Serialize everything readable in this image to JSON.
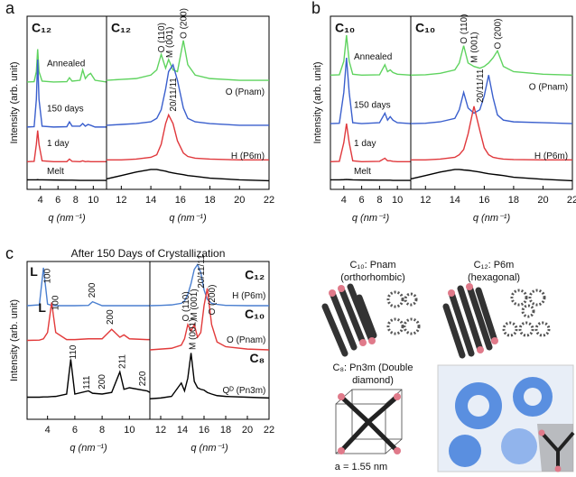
{
  "figure": {
    "panel_labels": [
      "a",
      "b",
      "c"
    ],
    "c_title": "After 150 Days of Crystallization",
    "structures": [
      "C₁₀: Pnam",
      "(orthorhombic)",
      "C₁₂: P6m",
      "(hexagonal)",
      "C₈: Pn3m (Double",
      "diamond)",
      "a = 1.55 nm"
    ]
  },
  "chart_data": [
    {
      "type": "line",
      "title": "C₁₂",
      "ylabel": "Intensity (arb. unit)",
      "xlabel": "q (nm⁻¹)",
      "xlim": [
        2.5,
        11.5
      ],
      "xticks": [
        4,
        6,
        8,
        10
      ],
      "ylim": [
        0,
        10
      ],
      "x": [
        2.5,
        3.3,
        3.55,
        3.7,
        3.85,
        4.2,
        5.5,
        7.0,
        7.3,
        7.6,
        8.5,
        8.8,
        9.1,
        9.4,
        9.7,
        10.2,
        11.5
      ],
      "series": [
        {
          "name": "Annealed",
          "color": "#5fd35f",
          "values": [
            6.2,
            6.22,
            6.8,
            8.1,
            6.8,
            6.25,
            6.2,
            6.22,
            6.45,
            6.25,
            6.3,
            6.9,
            6.4,
            6.6,
            6.7,
            6.3,
            6.2
          ]
        },
        {
          "name": "150 days",
          "color": "#3a5fcd",
          "values": [
            3.6,
            3.62,
            5.2,
            7.5,
            5.2,
            3.65,
            3.6,
            3.62,
            3.9,
            3.65,
            3.65,
            3.8,
            3.65,
            3.75,
            3.7,
            3.6,
            3.6
          ]
        },
        {
          "name": "1 day",
          "color": "#e0383c",
          "values": [
            1.6,
            1.62,
            2.6,
            3.4,
            2.6,
            1.65,
            1.6,
            1.6,
            1.75,
            1.62,
            1.6,
            1.65,
            1.6,
            1.62,
            1.6,
            1.6,
            1.6
          ]
        },
        {
          "name": "Melt",
          "color": "#000000",
          "values": [
            0.55,
            0.55,
            0.55,
            0.56,
            0.55,
            0.55,
            0.54,
            0.53,
            0.53,
            0.53,
            0.52,
            0.52,
            0.52,
            0.52,
            0.52,
            0.52,
            0.52
          ]
        }
      ],
      "annotations": []
    },
    {
      "type": "line",
      "title": "C₁₂",
      "xlabel": "q (nm⁻¹)",
      "xlim": [
        11,
        22
      ],
      "xticks": [
        12,
        14,
        16,
        18,
        20,
        22
      ],
      "ylim": [
        0,
        10
      ],
      "x": [
        11,
        12,
        13,
        14,
        14.4,
        14.7,
        15.0,
        15.2,
        15.5,
        15.8,
        16.2,
        16.5,
        17,
        18,
        20,
        22
      ],
      "series": [
        {
          "color": "#5fd35f",
          "values": [
            6.3,
            6.35,
            6.4,
            6.6,
            6.9,
            7.8,
            7.0,
            7.5,
            6.9,
            6.8,
            8.6,
            7.2,
            6.6,
            6.4,
            6.3,
            6.3
          ]
        },
        {
          "color": "#3a5fcd",
          "values": [
            3.7,
            3.75,
            3.8,
            3.9,
            4.1,
            4.6,
            5.8,
            6.8,
            7.2,
            6.3,
            4.7,
            4.1,
            3.9,
            3.8,
            3.7,
            3.7
          ]
        },
        {
          "color": "#e0383c",
          "values": [
            1.7,
            1.7,
            1.75,
            1.85,
            2.0,
            2.6,
            3.8,
            4.3,
            3.8,
            2.8,
            2.1,
            1.9,
            1.8,
            1.75,
            1.7,
            1.7
          ]
        },
        {
          "color": "#000000",
          "values": [
            0.6,
            0.8,
            1.0,
            1.15,
            1.15,
            1.1,
            1.05,
            1.0,
            0.95,
            0.9,
            0.85,
            0.8,
            0.75,
            0.65,
            0.55,
            0.5
          ]
        }
      ],
      "annotations": [
        "O (110)",
        "M (001)",
        "O (200)",
        "O (Pnam)",
        "H (P6m)",
        "20/11/11"
      ]
    },
    {
      "type": "line",
      "title": "C₁₀",
      "ylabel": "Intensity (arb. unit)",
      "xlabel": "q (nm⁻¹)",
      "xlim": [
        2.5,
        11.5
      ],
      "xticks": [
        4,
        6,
        8,
        10
      ],
      "ylim": [
        0,
        10
      ],
      "x": [
        2.5,
        3.5,
        4.0,
        4.3,
        4.6,
        5.0,
        6.0,
        8.0,
        8.6,
        8.9,
        9.2,
        9.5,
        10,
        11.5
      ],
      "series": [
        {
          "name": "Annealed",
          "color": "#5fd35f",
          "values": [
            6.6,
            6.62,
            7.4,
            8.9,
            7.4,
            6.65,
            6.6,
            6.62,
            7.2,
            6.8,
            6.9,
            6.75,
            6.65,
            6.6
          ]
        },
        {
          "name": "150 days",
          "color": "#3a5fcd",
          "values": [
            3.8,
            3.82,
            5.6,
            7.6,
            5.6,
            3.85,
            3.8,
            3.85,
            4.4,
            4.0,
            4.2,
            4.0,
            3.85,
            3.8
          ]
        },
        {
          "name": "1 day",
          "color": "#e0383c",
          "values": [
            1.6,
            1.62,
            2.7,
            3.8,
            2.7,
            1.65,
            1.6,
            1.62,
            1.8,
            1.65,
            1.65,
            1.62,
            1.6,
            1.6
          ]
        },
        {
          "name": "Melt",
          "color": "#000000",
          "values": [
            0.55,
            0.55,
            0.56,
            0.57,
            0.56,
            0.55,
            0.54,
            0.53,
            0.53,
            0.53,
            0.53,
            0.52,
            0.52,
            0.52
          ]
        }
      ],
      "annotations": []
    },
    {
      "type": "line",
      "title": "C₁₀",
      "xlabel": "q (nm⁻¹)",
      "xlim": [
        11,
        22
      ],
      "xticks": [
        12,
        14,
        16,
        18,
        20,
        22
      ],
      "ylim": [
        0,
        10
      ],
      "x": [
        11,
        12,
        13,
        14,
        14.3,
        14.6,
        14.9,
        15.3,
        15.7,
        16.0,
        16.3,
        16.6,
        16.9,
        17.3,
        18,
        20,
        22
      ],
      "series": [
        {
          "color": "#5fd35f",
          "values": [
            6.6,
            6.62,
            6.7,
            6.9,
            7.3,
            8.3,
            7.3,
            7.1,
            7.0,
            7.1,
            7.3,
            7.6,
            8.0,
            7.1,
            6.8,
            6.65,
            6.6
          ]
        },
        {
          "color": "#3a5fcd",
          "values": [
            3.8,
            3.82,
            3.9,
            4.1,
            4.6,
            5.6,
            4.7,
            4.4,
            4.6,
            5.4,
            6.6,
            5.3,
            4.3,
            4.0,
            3.9,
            3.85,
            3.8
          ]
        },
        {
          "color": "#e0383c",
          "values": [
            1.7,
            1.7,
            1.75,
            1.85,
            2.0,
            2.3,
            3.2,
            4.8,
            3.4,
            2.4,
            2.0,
            1.85,
            1.8,
            1.75,
            1.72,
            1.7,
            1.7
          ]
        },
        {
          "color": "#000000",
          "values": [
            0.6,
            0.8,
            1.0,
            1.15,
            1.15,
            1.12,
            1.1,
            1.05,
            1.0,
            0.95,
            0.9,
            0.87,
            0.84,
            0.8,
            0.7,
            0.58,
            0.5
          ]
        }
      ],
      "annotations": [
        "O (110)",
        "M (001)",
        "O (200)",
        "O (Pnam)",
        "H (P6m)",
        "20/11/11"
      ]
    },
    {
      "type": "line",
      "ylabel": "Intensity (arb. unit)",
      "xlabel": "q (nm⁻¹)",
      "xlim": [
        2.5,
        11.5
      ],
      "xticks": [
        4,
        6,
        8,
        10
      ],
      "ylim": [
        0,
        10
      ],
      "x": [
        2.5,
        3.4,
        3.7,
        4.0,
        4.3,
        4.6,
        5.4,
        5.7,
        6.0,
        7.0,
        7.3,
        8.0,
        8.7,
        9.3,
        9.6,
        10.0,
        11.3,
        11.5
      ],
      "series": [
        {
          "color": "#4a7fd0",
          "values": [
            7.2,
            7.25,
            9.6,
            7.3,
            7.22,
            7.2,
            7.2,
            7.2,
            7.2,
            7.22,
            7.45,
            7.2,
            7.2,
            7.2,
            7.2,
            7.2,
            7.2,
            7.2
          ]
        },
        {
          "color": "#e23b3b",
          "values": [
            5.0,
            5.02,
            5.1,
            5.5,
            7.4,
            5.5,
            5.05,
            5.05,
            5.05,
            5.1,
            5.1,
            5.1,
            5.7,
            5.2,
            5.35,
            5.1,
            5.05,
            5.05
          ]
        },
        {
          "color": "#000000",
          "values": [
            1.4,
            1.4,
            1.42,
            1.42,
            1.44,
            1.45,
            1.6,
            3.8,
            1.6,
            1.8,
            1.65,
            1.6,
            1.7,
            3.0,
            1.9,
            2.0,
            1.8,
            1.7
          ]
        }
      ],
      "annotations": [
        "L",
        "100",
        "200",
        "L",
        "100",
        "200",
        "110",
        "111",
        "200",
        "211",
        "220"
      ]
    },
    {
      "type": "line",
      "xlabel": "q (nm⁻¹)",
      "xlim": [
        11,
        22
      ],
      "xticks": [
        12,
        14,
        16,
        18,
        20,
        22
      ],
      "ylim": [
        0,
        10
      ],
      "x": [
        11,
        12,
        13,
        13.9,
        14.2,
        14.5,
        14.8,
        15.1,
        15.4,
        15.7,
        16.0,
        16.3,
        16.7,
        17.2,
        18,
        20,
        22
      ],
      "series": [
        {
          "color": "#4a7fd0",
          "values": [
            7.2,
            7.22,
            7.25,
            7.35,
            7.5,
            7.9,
            8.6,
            9.5,
            9.8,
            9.3,
            8.2,
            7.6,
            7.35,
            7.28,
            7.22,
            7.2,
            7.2
          ]
        },
        {
          "color": "#e23b3b",
          "values": [
            4.4,
            4.45,
            4.5,
            4.7,
            5.1,
            6.0,
            5.6,
            6.0,
            5.2,
            5.5,
            7.2,
            8.3,
            6.0,
            4.9,
            4.6,
            4.45,
            4.4
          ]
        },
        {
          "color": "#000000",
          "values": [
            1.3,
            1.35,
            1.45,
            2.3,
            1.8,
            2.6,
            4.2,
            2.4,
            2.0,
            1.9,
            1.85,
            1.7,
            1.6,
            1.5,
            1.45,
            1.4,
            1.35
          ]
        }
      ],
      "annotations": [
        "C₁₂",
        "20/11/11",
        "H (P6m)",
        "C₁₀",
        "O (110)",
        "M (001)",
        "O (200)",
        "O (Pnam)",
        "C₈",
        "M (001)",
        "Qᴰ (Pn3m)"
      ]
    }
  ]
}
